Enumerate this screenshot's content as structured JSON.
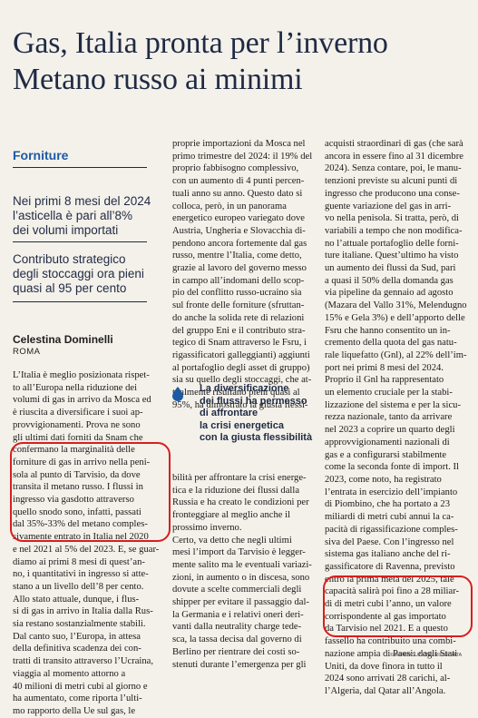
{
  "headline": {
    "line1": "Gas, Italia pronta per l’inverno",
    "line2": "Metano russo ai minimi"
  },
  "section": "Forniture",
  "deck": {
    "item1": [
      "Nei primi 8 mesi del 2024",
      "l’asticella è pari all’8%",
      "dei volumi importati"
    ],
    "item2": [
      "Contributo strategico",
      "degli stoccaggi ora pieni",
      "quasi al 95 per cento"
    ]
  },
  "byline": {
    "author": "Celestina Dominelli",
    "place": "ROMA"
  },
  "pull_quote": [
    "La diversificazione",
    "dei flussi ha permesso",
    "di affrontare",
    "la crisi energetica",
    "con la giusta flessibilità"
  ],
  "columns": {
    "col1": [
      "L’Italia è meglio posizionata rispet-",
      "to all’Europa nella riduzione dei",
      "volumi di gas in arrivo da Mosca ed",
      "è riuscita a diversificare i suoi ap-",
      "provvigionamenti. Prova ne sono",
      "gli ultimi dati forniti da Snam che",
      "confermano la marginalità delle",
      "forniture di gas in arrivo nella peni-",
      "sola al punto di Tarvisio, da dove",
      "transita il metano russo. I flussi in",
      "ingresso via gasdotto attraverso",
      "quello snodo sono, infatti, passati",
      "dal 35%-33% del metano comples-",
      "sivamente entrato in Italia nel 2020",
      "e nel 2021 al 5% del 2023. E, se guar-",
      "diamo ai primi 8 mesi di quest’an-",
      "no, i quantitativi in ingresso si atte-",
      "stano a un livello dell’8 per cento.",
      "Allo stato attuale, dunque, i flus-",
      "si di gas in arrivo in Italia dalla Rus-",
      "sia restano sostanzialmente stabili.",
      "Dal canto suo, l’Europa, in attesa",
      "della definitiva scadenza dei con-",
      "tratti di transito attraverso l’Ucraina,",
      "viaggia al momento attorno a",
      "40 milioni di metri cubi al giorno e",
      "ha aumentato, come riporta l’ulti-",
      "mo rapporto della Ue sul gas, le"
    ],
    "col2": [
      "proprie importazioni da Mosca nel",
      "primo trimestre del 2024: il 19% del",
      "proprio fabbisogno complessivo,",
      "con un aumento di 4 punti percen-",
      "tuali anno su anno. Questo dato si",
      "colloca, però, in un panorama",
      "energetico europeo variegato dove",
      "Austria, Ungheria e Slovacchia di-",
      "pendono ancora fortemente dal gas",
      "russo, mentre l’Italia, come detto,",
      "grazie al lavoro del governo messo",
      "in campo all’indomani dello scop-",
      "pio del conflitto russo-ucraino sia",
      "sul fronte delle forniture (sfruttan-",
      "do anche la solida rete di relazioni",
      "del gruppo Eni e il contributo stra-",
      "tegico di Snam attraverso le Fsru, i",
      "rigassificatori galleggianti) aggiunti",
      "al portafoglio degli asset di gruppo)",
      "sia su quello degli stoccaggi, che at-",
      "tualmente risultano pieni quasi al",
      "95%, ha dimostrato la giusta flessi-"
    ],
    "col2b": [
      "bilità per affrontare la crisi energe-",
      "tica e la riduzione dei flussi dalla",
      "Russia e ha creato le condizioni per",
      "fronteggiare al meglio anche il",
      "prossimo inverno.",
      "Certo, va detto che negli ultimi",
      "mesi l’import da Tarvisio è legger-",
      "mente salito ma le eventuali variazi-",
      "zioni, in aumento o in discesa, sono",
      "dovute a scelte commerciali degli",
      "shipper per evitare il passaggio dal-",
      "la Germania e i relativi oneri deri-",
      "vanti dalla neutrality charge tede-",
      "sca, la tassa decisa dal governo di",
      "Berlino per rientrare dei costi so-",
      "stenuti durante l’emergenza per gli"
    ],
    "col3": [
      "acquisti straordinari di gas (che sarà",
      "ancora in essere fino al 31 dicembre",
      "2024). Senza contare, poi, le manu-",
      "tenzioni previste su alcuni punti di",
      "ingresso che producono una conse-",
      "guente variazione del gas in arri-",
      "vo nella penisola. Si tratta, però, di",
      "variabili a tempo che non modifica-",
      "no l’attuale portafoglio delle forni-",
      "ture italiane. Quest’ultimo ha visto",
      "un aumento dei flussi da Sud, pari",
      "a quasi il 50% della domanda gas",
      "via pipeline da gennaio ad agosto",
      "(Mazara del Vallo 31%, Melendugno",
      "15% e Gela 3%) e dell’apporto delle",
      "Fsru che hanno consentito un in-",
      "cremento della quota del gas natu-",
      "rale liquefatto (Gnl), al 22% dell’im-",
      "port nei primi 8 mesi del 2024.",
      "Proprio il Gnl ha rappresentato",
      "un elemento cruciale per la stabi-",
      "lizzazione del sistema e per la sicu-",
      "rezza nazionale, tanto da arrivare",
      "nel 2023 a coprire un quarto degli",
      "approvvigionamenti nazionali di",
      "gas e a configurarsi stabilmente",
      "come la seconda fonte di import. Il",
      "2023, come noto, ha registrato",
      "l’entrata in esercizio dell’impianto",
      "di Piombino, che ha portato a 23",
      "miliardi di metri cubi annui la ca-",
      "pacità di rigassificazione comples-",
      "siva del Paese. Con l’ingresso nel",
      "sistema gas italiano anche del ri-",
      "gassificatore di Ravenna, previsto",
      "entro la prima metà del 2025, tale",
      "capacità salirà poi fino a 28 miliar-",
      "di di metri cubi l’anno, un valore",
      "corrispondente al gas importato",
      "da Tarvisio nel 2021. E a questo",
      "fassello ha contribuito una combi-",
      "nazione ampia di Paesi: dagli Stati",
      "Uniti, da dove finora in tutto il",
      "2024 sono arrivati 28 carichi, al-",
      "l’Algeria, dal Qatar all’Angola."
    ]
  },
  "copyright": "© RIPRODUZIONE RISERVATA",
  "colors": {
    "headline": "#1f2a44",
    "section": "#1d5aa5",
    "highlight": "#d81e1e",
    "background": "#f4f1ea"
  },
  "icons": {
    "pull_quote_icon": "water-drop-icon"
  }
}
